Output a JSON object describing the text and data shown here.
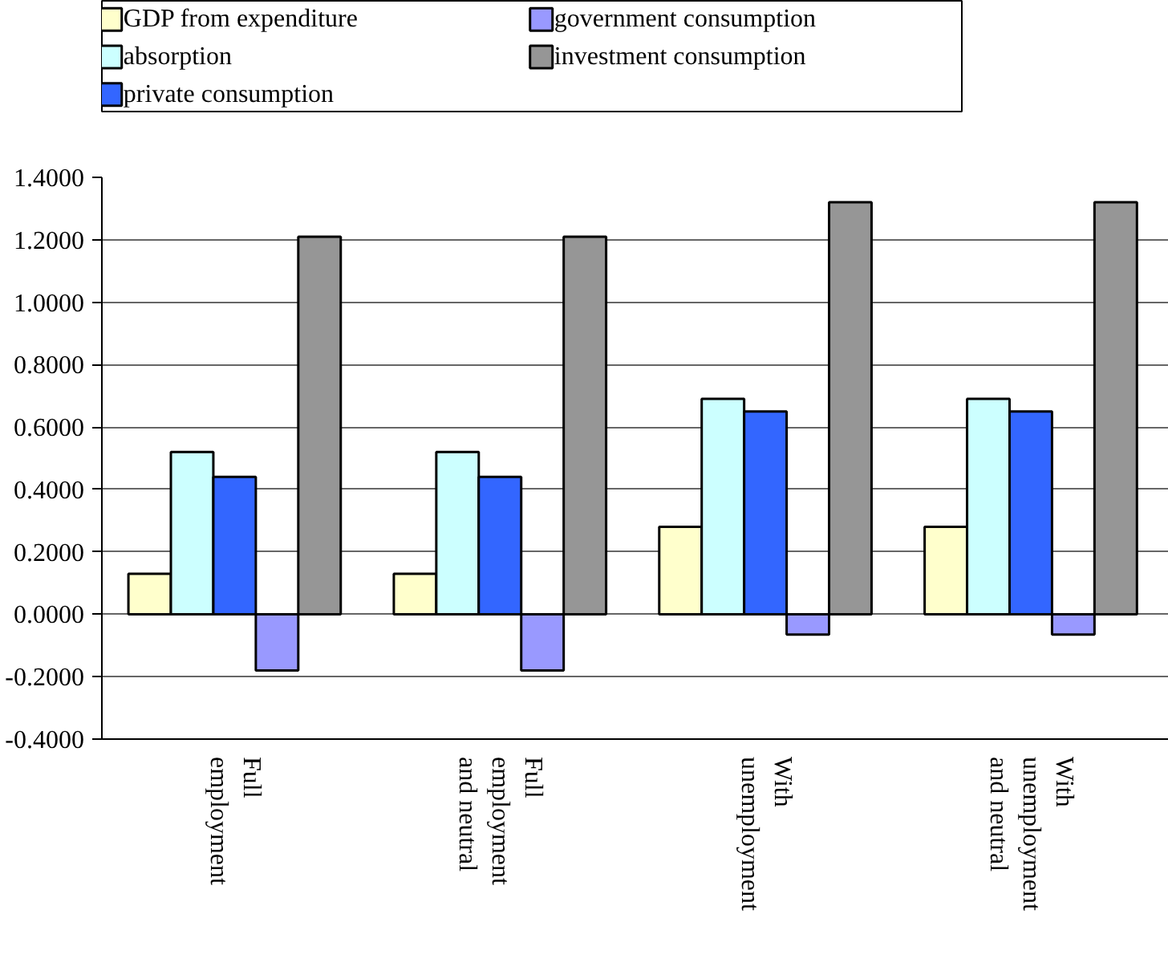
{
  "chart_data": {
    "type": "bar",
    "categories": [
      "Full\nemployment",
      "Full\nemployment\nand neutral",
      "With\nunemployment",
      "With\nunemployment\nand neutral"
    ],
    "series": [
      {
        "name": "GDP from expenditure",
        "color": "#ffffcc",
        "values": [
          0.13,
          0.13,
          0.28,
          0.28
        ]
      },
      {
        "name": "absorption",
        "color": "#ccffff",
        "values": [
          0.52,
          0.52,
          0.69,
          0.69
        ]
      },
      {
        "name": "private consumption",
        "color": "#3366ff",
        "values": [
          0.44,
          0.44,
          0.65,
          0.65
        ]
      },
      {
        "name": "government consumption",
        "color": "#9999ff",
        "values": [
          -0.18,
          -0.18,
          -0.065,
          -0.065
        ]
      },
      {
        "name": "investment consumption",
        "color": "#969696",
        "values": [
          1.21,
          1.21,
          1.32,
          1.32
        ]
      }
    ],
    "ylim": [
      -0.4,
      1.4
    ],
    "yticks": [
      {
        "value": -0.4,
        "label": "-0.4000"
      },
      {
        "value": -0.2,
        "label": "-0.2000"
      },
      {
        "value": 0,
        "label": "0.0000"
      },
      {
        "value": 0.2,
        "label": "0.2000"
      },
      {
        "value": 0.4,
        "label": "0.4000"
      },
      {
        "value": 0.6,
        "label": "0.6000"
      },
      {
        "value": 0.8,
        "label": "0.8000"
      },
      {
        "value": 1.0,
        "label": "1.0000"
      },
      {
        "value": 1.2,
        "label": "1.2000"
      },
      {
        "value": 1.4,
        "label": "1.4000"
      }
    ],
    "grid": "y",
    "legend": "top"
  }
}
